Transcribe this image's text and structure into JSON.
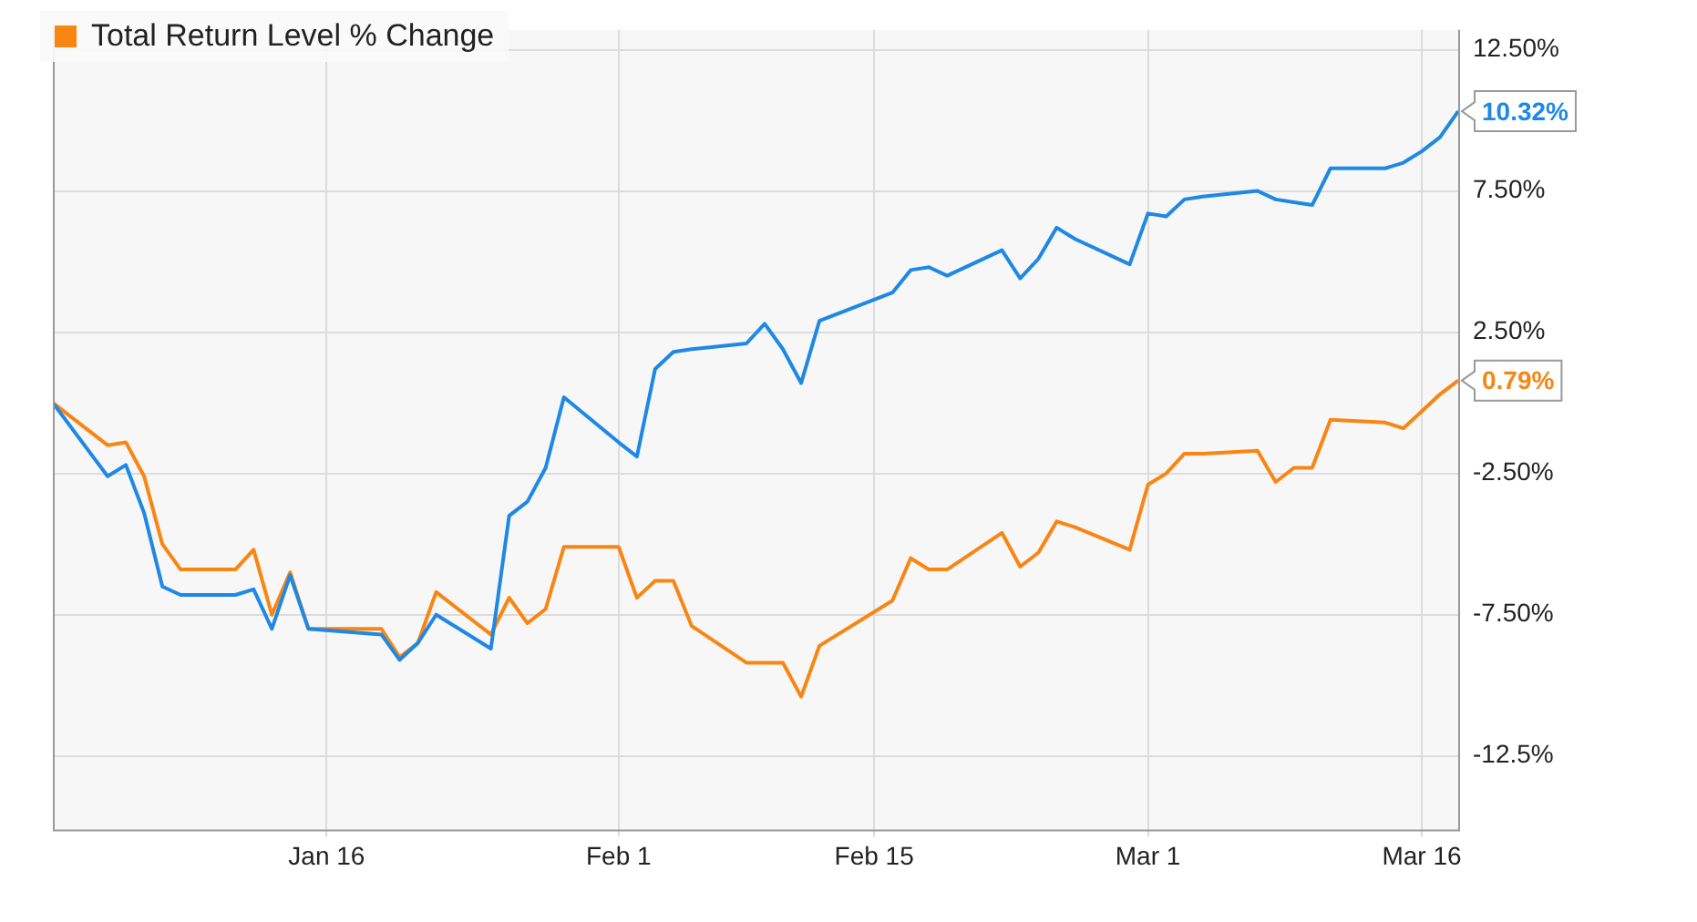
{
  "chart_data": {
    "type": "line",
    "x": [
      "--01-01",
      "--01-04",
      "--01-05",
      "--01-06",
      "--01-07",
      "--01-08",
      "--01-11",
      "--01-12",
      "--01-13",
      "--01-14",
      "--01-15",
      "--01-19",
      "--01-20",
      "--01-21",
      "--01-22",
      "--01-25",
      "--01-26",
      "--01-27",
      "--01-28",
      "--01-29",
      "--02-01",
      "--02-02",
      "--02-03",
      "--02-04",
      "--02-05",
      "--02-08",
      "--02-09",
      "--02-10",
      "--02-11",
      "--02-12",
      "--02-16",
      "--02-17",
      "--02-18",
      "--02-19",
      "--02-22",
      "--02-23",
      "--02-24",
      "--02-25",
      "--02-26",
      "--02-29",
      "--03-01",
      "--03-02",
      "--03-03",
      "--03-04",
      "--03-07",
      "--03-08",
      "--03-09",
      "--03-10",
      "--03-11",
      "--03-14",
      "--03-15",
      "--03-16",
      "--03-17",
      "--03-18"
    ],
    "series": [
      {
        "color": "#1e88e5",
        "values": [
          0,
          -2.6,
          -2.2,
          -3.9,
          -6.5,
          -6.8,
          -6.8,
          -6.6,
          -8.0,
          -6.1,
          -8.0,
          -8.2,
          -9.1,
          -8.5,
          -7.5,
          -8.7,
          -4.0,
          -3.5,
          -2.3,
          0.2,
          -1.4,
          -1.9,
          1.2,
          1.8,
          1.9,
          2.1,
          2.8,
          1.9,
          0.7,
          2.9,
          3.9,
          4.7,
          4.8,
          4.5,
          5.4,
          4.4,
          5.1,
          6.2,
          5.8,
          4.9,
          6.7,
          6.6,
          7.2,
          7.3,
          7.5,
          7.2,
          7.1,
          7.0,
          8.3,
          8.3,
          8.5,
          8.9,
          9.4,
          10.32
        ],
        "value_labels": [
          null,
          null,
          null,
          null,
          null,
          null,
          null,
          null,
          null,
          null,
          null,
          null,
          null,
          null,
          null,
          null,
          null,
          null,
          null,
          null,
          null,
          null,
          null,
          null,
          null,
          null,
          null,
          null,
          null,
          null,
          null,
          null,
          null,
          null,
          null,
          null,
          null,
          null,
          null,
          null,
          null,
          null,
          null,
          null,
          null,
          null,
          null,
          null,
          null,
          null,
          null,
          null,
          null,
          "10.32%"
        ]
      },
      {
        "name": "Total Return Level % Change",
        "color": "#f98512",
        "values": [
          0,
          -1.5,
          -1.4,
          -2.6,
          -5.0,
          -5.9,
          -5.9,
          -5.2,
          -7.5,
          -6.0,
          -8.0,
          -8.0,
          -9.0,
          -8.5,
          -6.7,
          -8.2,
          -6.9,
          -7.8,
          -7.3,
          -5.1,
          -5.1,
          -6.9,
          -6.3,
          -6.3,
          -7.9,
          -9.2,
          -9.2,
          -9.2,
          -10.4,
          -8.6,
          -7.0,
          -5.5,
          -5.9,
          -5.9,
          -4.6,
          -5.8,
          -5.3,
          -4.2,
          -4.4,
          -5.2,
          -2.9,
          -2.5,
          -1.8,
          -1.8,
          -1.7,
          -2.8,
          -2.3,
          -2.3,
          -0.6,
          -0.7,
          -0.9,
          -0.3,
          0.3,
          0.79
        ],
        "value_labels": [
          null,
          null,
          null,
          null,
          null,
          null,
          null,
          null,
          null,
          null,
          null,
          null,
          null,
          null,
          null,
          null,
          null,
          null,
          null,
          null,
          null,
          null,
          null,
          null,
          null,
          null,
          null,
          null,
          null,
          null,
          null,
          null,
          null,
          null,
          null,
          null,
          null,
          null,
          null,
          null,
          null,
          null,
          null,
          null,
          null,
          null,
          null,
          null,
          null,
          null,
          null,
          null,
          null,
          "0.79%"
        ]
      }
    ],
    "xlim": [
      "--01-01",
      "--03-18"
    ],
    "xticks": [
      {
        "value": "--01-16",
        "label": "Jan 16"
      },
      {
        "value": "--02-01",
        "label": "Feb 1"
      },
      {
        "value": "--02-15",
        "label": "Feb 15"
      },
      {
        "value": "--03-01",
        "label": "Mar 1"
      },
      {
        "value": "--03-16",
        "label": "Mar 16"
      }
    ],
    "ylim": [
      -15.1,
      13.2
    ],
    "yticks": [
      {
        "value": 12.5,
        "label": "12.50%"
      },
      {
        "value": 7.5,
        "label": "7.50%"
      },
      {
        "value": 2.5,
        "label": "2.50%"
      },
      {
        "value": -2.5,
        "label": "-2.50%"
      },
      {
        "value": -7.5,
        "label": "-7.50%"
      },
      {
        "value": -12.5,
        "label": "-12.5%"
      }
    ],
    "grid": true,
    "legend": "top left",
    "marker": "none",
    "line_style": "solid"
  }
}
